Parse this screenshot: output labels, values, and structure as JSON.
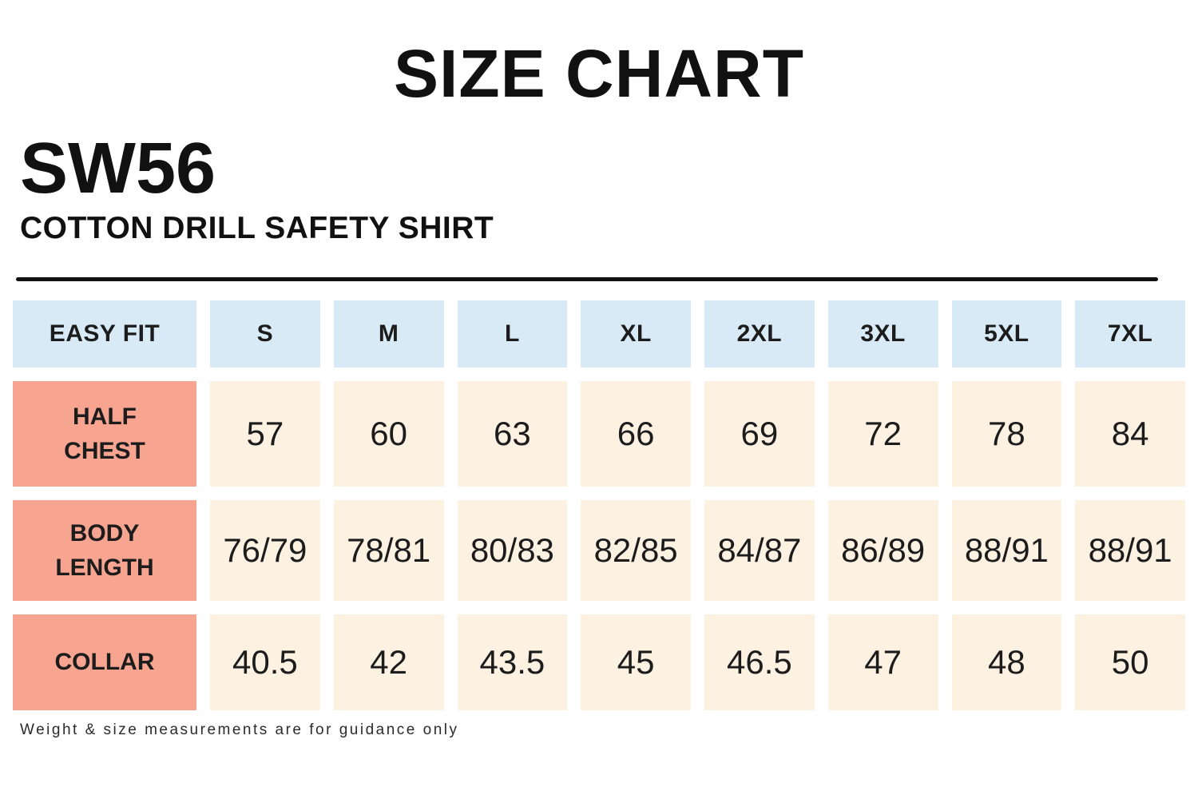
{
  "page": {
    "title": "SIZE CHART",
    "product_code": "SW56",
    "product_name": "COTTON DRILL SAFETY SHIRT",
    "footnote": "Weight & size measurements are for guidance only"
  },
  "colors": {
    "header_bg": "#d7eaf6",
    "label_bg": "#f7a490",
    "value_bg": "#fdf1e2",
    "text": "#1c1c1c",
    "ink": "#111111"
  },
  "chart_data": {
    "type": "table",
    "title": "SIZE CHART",
    "fit_label": "EASY FIT",
    "sizes": [
      "S",
      "M",
      "L",
      "XL",
      "2XL",
      "3XL",
      "5XL",
      "7XL"
    ],
    "rows": [
      {
        "label": "HALF CHEST",
        "values": [
          "57",
          "60",
          "63",
          "66",
          "69",
          "72",
          "78",
          "84"
        ]
      },
      {
        "label": "BODY LENGTH",
        "values": [
          "76/79",
          "78/81",
          "80/83",
          "82/85",
          "84/87",
          "86/89",
          "88/91",
          "88/91"
        ]
      },
      {
        "label": "COLLAR",
        "values": [
          "40.5",
          "42",
          "43.5",
          "45",
          "46.5",
          "47",
          "48",
          "50"
        ]
      }
    ]
  }
}
